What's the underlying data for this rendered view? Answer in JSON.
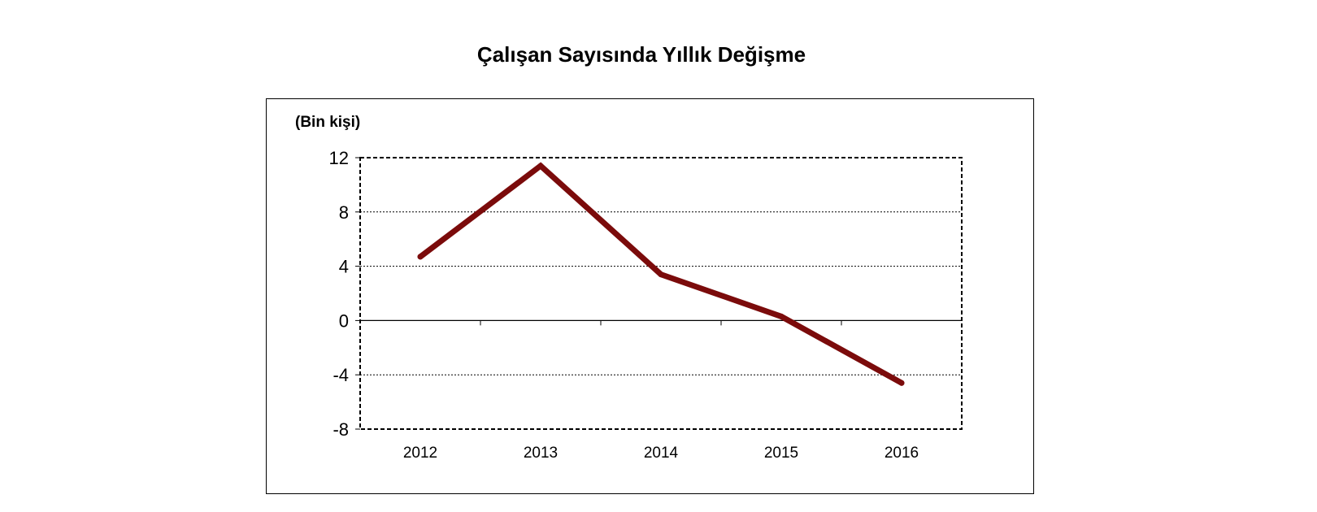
{
  "chart_data": {
    "type": "line",
    "title": "Çalışan Sayısında Yıllık Değişme",
    "ylabel": "(Bin kişi)",
    "xlabel": "",
    "categories": [
      "2012",
      "2013",
      "2014",
      "2015",
      "2016"
    ],
    "values": [
      4.7,
      11.4,
      3.4,
      0.3,
      -4.6
    ],
    "ylim": [
      -8,
      12
    ],
    "yticks": [
      "12",
      "8",
      "4",
      "0",
      "-4",
      "-8"
    ],
    "grid": true,
    "legend": "none",
    "line_color": "#7b0b0b"
  }
}
